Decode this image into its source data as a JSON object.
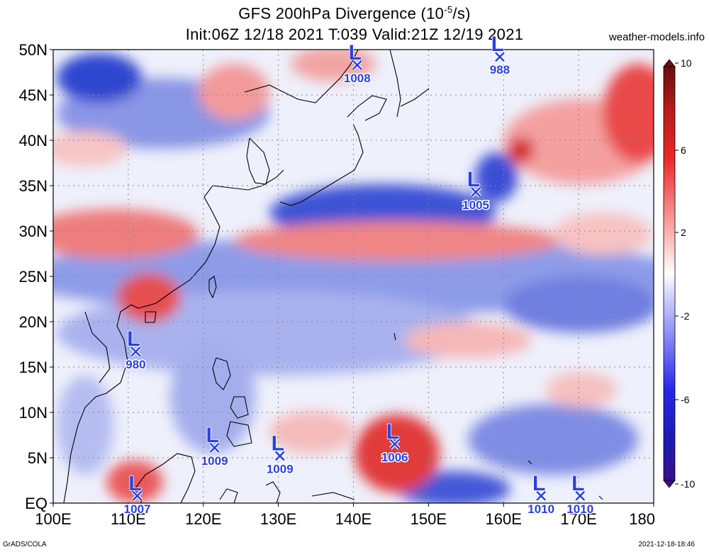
{
  "header": {
    "title_prefix": "GFS 200hPa Divergence (10",
    "title_exp": "-5",
    "title_suffix": "/s)",
    "subtitle": "Init:06Z 12/18 2021 T:039 Valid:21Z 12/19 2021",
    "site": "weather-models.info"
  },
  "footer": {
    "left": "GrADS/COLA",
    "right": "2021-12-18-18:46"
  },
  "map": {
    "lat_labels": [
      "50N",
      "45N",
      "40N",
      "35N",
      "30N",
      "25N",
      "20N",
      "15N",
      "10N",
      "5N",
      "EQ"
    ],
    "lon_labels": [
      "100E",
      "110E",
      "120E",
      "130E",
      "140E",
      "150E",
      "160E",
      "170E",
      "180"
    ],
    "lows": [
      {
        "symbol": "L",
        "pressure": "1008",
        "lon": 140.5,
        "lat": 48.3
      },
      {
        "symbol": "L",
        "pressure": "988",
        "lon": 159.5,
        "lat": 49.2
      },
      {
        "symbol": "L",
        "pressure": "1005",
        "lon": 156.3,
        "lat": 34.3
      },
      {
        "symbol": "L",
        "pressure": "980",
        "lon": 111.0,
        "lat": 16.7
      },
      {
        "symbol": "L",
        "pressure": "1009",
        "lon": 121.5,
        "lat": 6.1
      },
      {
        "symbol": "L",
        "pressure": "1009",
        "lon": 130.2,
        "lat": 5.2
      },
      {
        "symbol": "L",
        "pressure": "1006",
        "lon": 145.5,
        "lat": 6.5
      },
      {
        "symbol": "L",
        "pressure": "1007",
        "lon": 111.2,
        "lat": 0.8
      },
      {
        "symbol": "L",
        "pressure": "1010",
        "lon": 165.0,
        "lat": 0.8
      },
      {
        "symbol": "L",
        "pressure": "1010",
        "lon": 170.2,
        "lat": 0.8
      }
    ]
  },
  "colorbar": {
    "labels": [
      "10",
      "6",
      "2",
      "-2",
      "-6",
      "-10"
    ],
    "colors": [
      "#6a0f0f",
      "#b31b1b",
      "#e82828",
      "#f58a8a",
      "#fbd6d6",
      "#ffffff",
      "#d6d6fb",
      "#8a8af5",
      "#2828e8",
      "#1b1bb3",
      "#3a0f8a"
    ]
  }
}
